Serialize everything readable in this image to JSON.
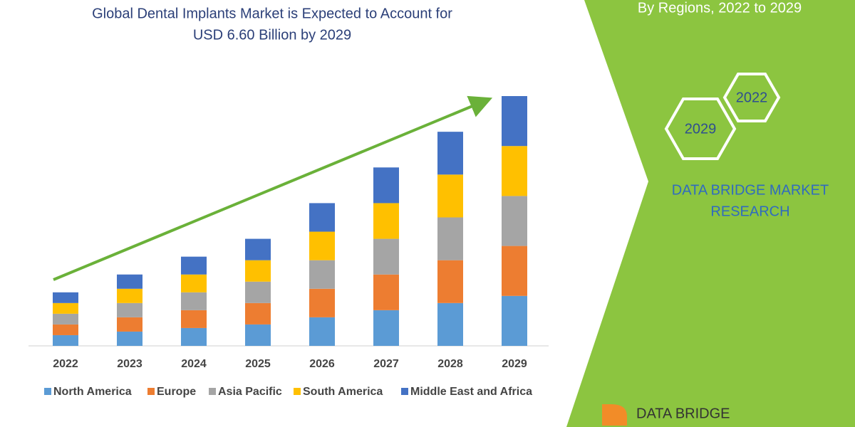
{
  "chart_data": {
    "type": "stacked_bar",
    "title": [
      "Global Dental Implants Market is Expected to Account for",
      "USD 6.60 Billion by 2029"
    ],
    "categories": [
      "2022",
      "2023",
      "2024",
      "2025",
      "2026",
      "2027",
      "2028",
      "2029"
    ],
    "series": [
      {
        "name": "North America",
        "color": "#5b9bd5",
        "values": [
          15,
          20,
          25,
          30,
          40,
          50,
          60,
          70
        ]
      },
      {
        "name": "Europe",
        "color": "#ed7d31",
        "values": [
          15,
          20,
          25,
          30,
          40,
          50,
          60,
          70
        ]
      },
      {
        "name": "Asia Pacific",
        "color": "#a5a5a5",
        "values": [
          15,
          20,
          25,
          30,
          40,
          50,
          60,
          70
        ]
      },
      {
        "name": "South America",
        "color": "#ffc000",
        "values": [
          15,
          20,
          25,
          30,
          40,
          50,
          60,
          70
        ]
      },
      {
        "name": "Middle East and Africa",
        "color": "#4472c4",
        "values": [
          15,
          20,
          25,
          30,
          40,
          50,
          60,
          70
        ]
      }
    ],
    "legend": "bottom",
    "side_panel": {
      "heading": "By Regions, 2022 to 2029",
      "hex_labels": [
        "2022",
        "2029"
      ],
      "brand": [
        "DATA BRIDGE MARKET",
        "RESEARCH"
      ],
      "logo": "DATA BRIDGE"
    }
  }
}
